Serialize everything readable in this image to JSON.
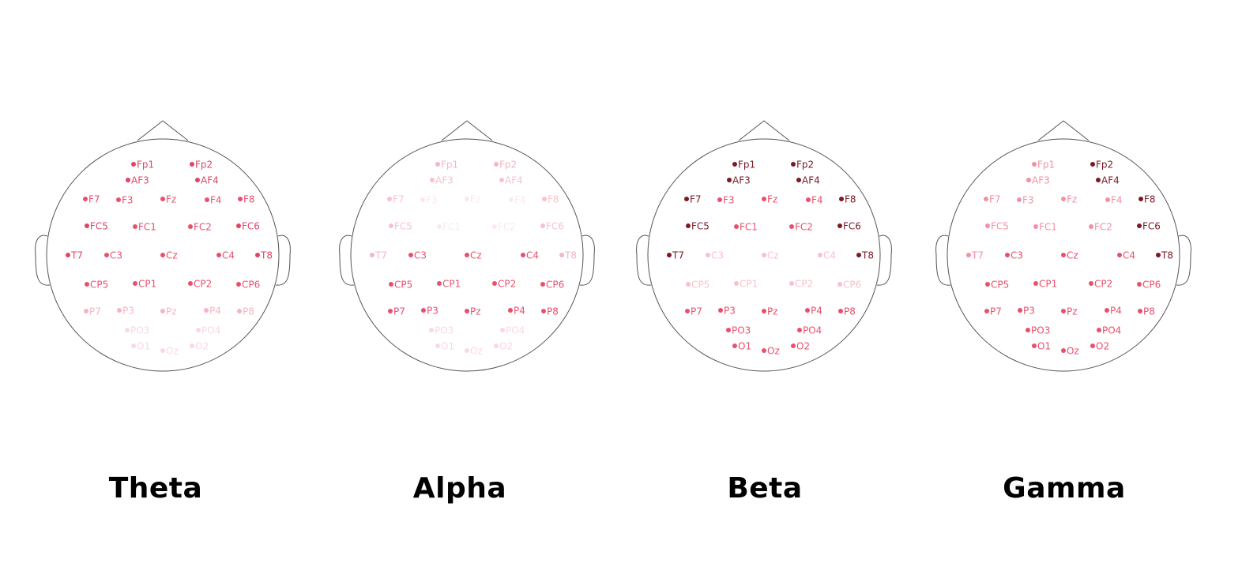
{
  "panels": [
    {
      "title": "Theta",
      "levels": {
        "Fp1": 0.55,
        "Fp2": 0.55,
        "AF3": 0.55,
        "AF4": 0.55,
        "F7": 0.5,
        "F3": 1.0,
        "Fz": 1.0,
        "F4": 1.0,
        "F8": 0.5,
        "FC5": 0.55,
        "FC1": 1.0,
        "FC2": 1.0,
        "FC6": 0.55,
        "T7": 0.55,
        "C3": 1.0,
        "Cz": 1.0,
        "C4": 1.0,
        "T8": 0.55,
        "CP5": 1.0,
        "CP1": 1.0,
        "CP2": 1.0,
        "CP6": 1.0,
        "P7": 0.25,
        "P3": 0.25,
        "Pz": 0.25,
        "P4": 0.25,
        "P8": 0.25,
        "PO3": 0.1,
        "PO4": 0.1,
        "O1": 0.1,
        "Oz": 0.1,
        "O2": 0.1
      }
    },
    {
      "title": "Alpha",
      "levels": {
        "Fp1": 0.25,
        "Fp2": 0.25,
        "AF3": 0.2,
        "AF4": 0.2,
        "F7": 0.2,
        "F3": 0.05,
        "Fz": 0.05,
        "F4": 0.05,
        "F8": 0.2,
        "FC5": 0.2,
        "FC1": 0.05,
        "FC2": 0.05,
        "FC6": 0.2,
        "T7": 0.25,
        "C3": 0.5,
        "Cz": 0.5,
        "C4": 0.5,
        "T8": 0.25,
        "CP5": 0.5,
        "CP1": 0.5,
        "CP2": 0.5,
        "CP6": 0.5,
        "P7": 0.5,
        "P3": 0.5,
        "Pz": 0.5,
        "P4": 0.5,
        "P8": 0.5,
        "PO3": 0.1,
        "PO4": 0.1,
        "O1": 0.1,
        "Oz": 0.1,
        "O2": 0.1
      }
    },
    {
      "title": "Beta",
      "levels": {
        "Fp1": 0.85,
        "Fp2": 0.85,
        "AF3": 0.85,
        "AF4": 0.85,
        "F7": 0.85,
        "F3": 0.5,
        "Fz": 0.5,
        "F4": 0.5,
        "F8": 0.85,
        "FC5": 0.85,
        "FC1": 0.5,
        "FC2": 0.5,
        "FC6": 0.85,
        "T7": 0.85,
        "C3": 0.2,
        "Cz": 0.2,
        "C4": 0.2,
        "T8": 0.85,
        "CP5": 0.2,
        "CP1": 0.2,
        "CP2": 0.2,
        "CP6": 0.2,
        "P7": 0.5,
        "P3": 0.5,
        "Pz": 0.5,
        "P4": 0.5,
        "P8": 0.5,
        "PO3": 0.5,
        "PO4": 0.5,
        "O1": 0.5,
        "Oz": 0.5,
        "O2": 0.5
      }
    },
    {
      "title": "Gamma",
      "levels": {
        "Fp1": 0.35,
        "Fp2": 0.85,
        "AF3": 0.35,
        "AF4": 0.85,
        "F7": 0.35,
        "F3": 0.35,
        "Fz": 0.35,
        "F4": 0.35,
        "F8": 0.85,
        "FC5": 0.35,
        "FC1": 0.35,
        "FC2": 0.35,
        "FC6": 0.85,
        "T7": 0.35,
        "C3": 0.5,
        "Cz": 0.5,
        "C4": 0.5,
        "T8": 0.85,
        "CP5": 0.5,
        "CP1": 0.5,
        "CP2": 0.5,
        "CP6": 0.5,
        "P7": 0.5,
        "P3": 0.5,
        "Pz": 0.5,
        "P4": 0.5,
        "P8": 0.5,
        "PO3": 0.5,
        "PO4": 0.5,
        "O1": 0.5,
        "Oz": 0.5,
        "O2": 0.5
      }
    }
  ],
  "colors": {
    "level_0.05": "#fce8ec",
    "level_0.1": "#fad9df",
    "level_0.2": "#f7c2cc",
    "level_0.25": "#f5b5c2",
    "level_0.35": "#f291a5",
    "level_0.5": "#e9506e",
    "level_0.55": "#de4563",
    "level_0.85": "#7a1a24",
    "level_1.0": "#5a0008",
    "head_outline": "#555555"
  }
}
